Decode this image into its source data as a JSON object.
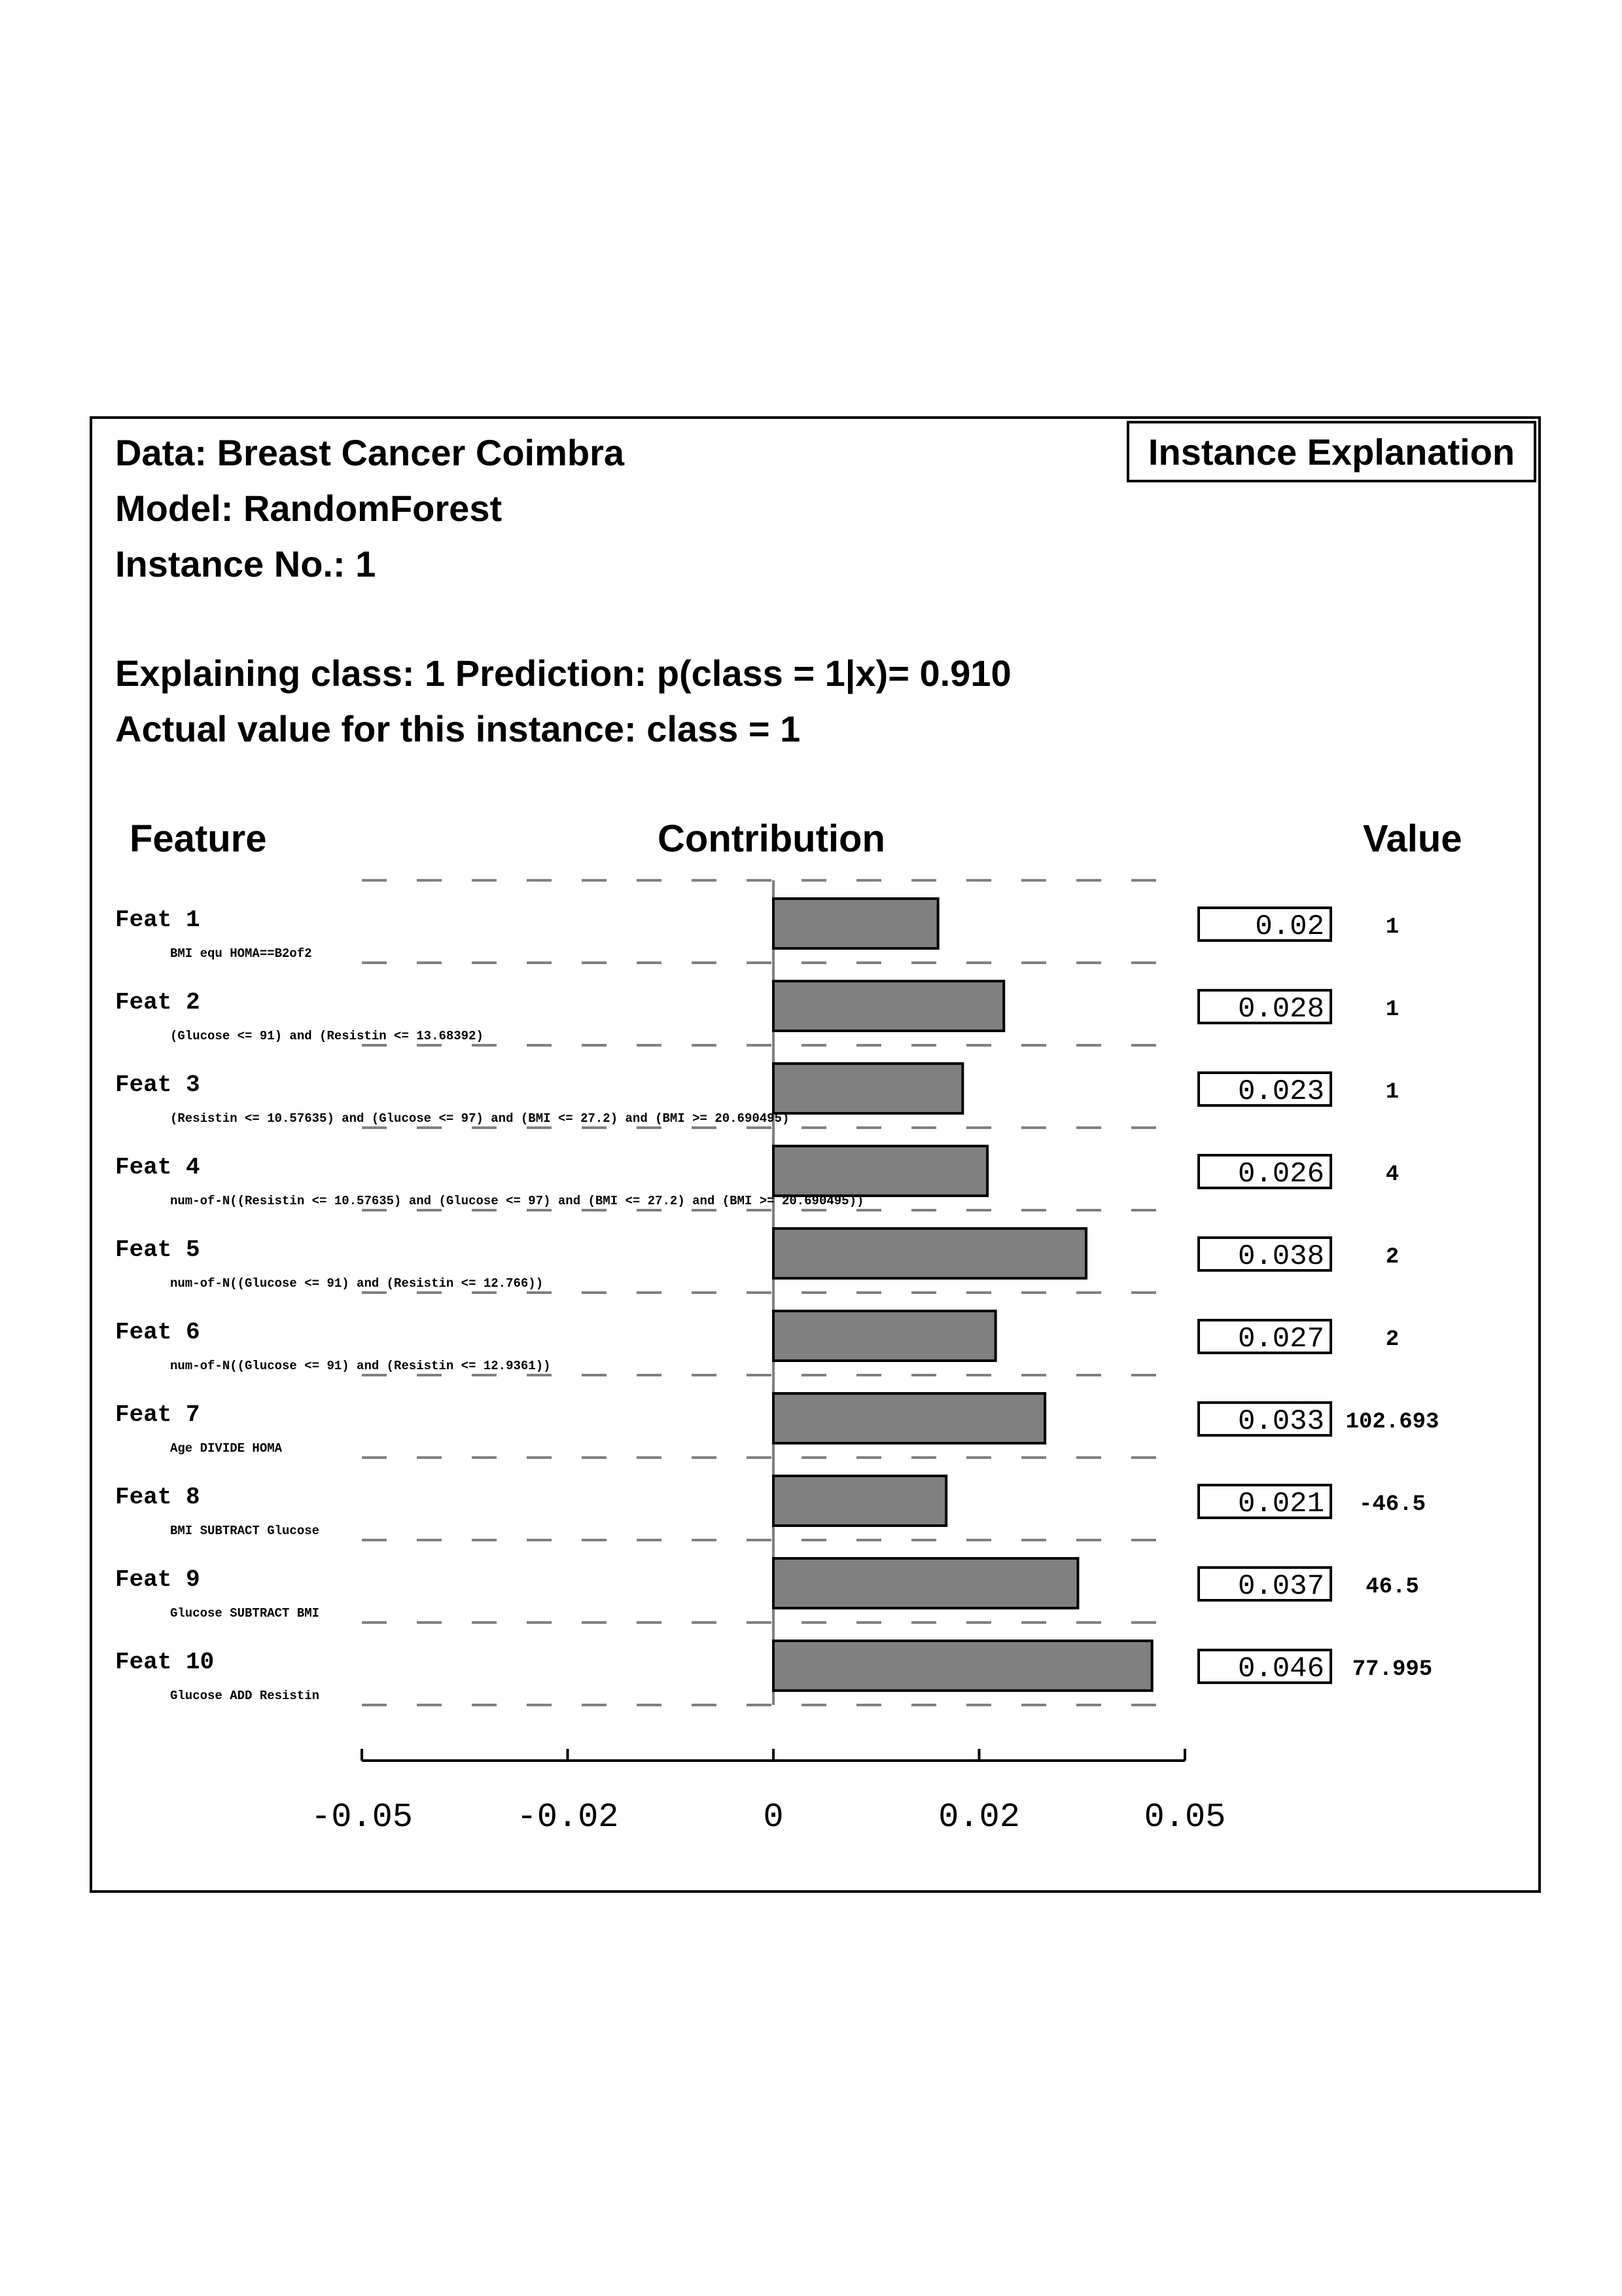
{
  "header": {
    "data_line": "Data: Breast Cancer Coimbra",
    "model_line": "Model: RandomForest",
    "instance_line": "Instance No.: 1",
    "explaining_line": "Explaining class: 1 Prediction: p(class = 1|x)= 0.910",
    "actual_line": "Actual value for this instance: class = 1",
    "badge": "Instance Explanation"
  },
  "columns": {
    "feature": "Feature",
    "contribution": "Contribution",
    "value": "Value"
  },
  "colors": {
    "bar_fill": "#808080",
    "bar_stroke": "#000000",
    "grid_dash": "#808080",
    "axis": "#000000"
  },
  "chart_data": {
    "type": "bar",
    "orientation": "horizontal",
    "xlim": [
      -0.05,
      0.05
    ],
    "x_ticks": [
      -0.05,
      -0.025,
      0,
      0.025,
      0.05
    ],
    "x_tick_labels": [
      "-0.05",
      "-0.02",
      "0",
      "0.02",
      "0.05"
    ],
    "grid": "dashed horizontal separators",
    "features": [
      {
        "name": "Feat 1",
        "desc": "BMI equ HOMA==B2of2",
        "contribution": 0.02,
        "contribution_label": "0.02",
        "value": "1"
      },
      {
        "name": "Feat 2",
        "desc": "(Glucose <= 91) and (Resistin <= 13.68392)",
        "contribution": 0.028,
        "contribution_label": "0.028",
        "value": "1"
      },
      {
        "name": "Feat 3",
        "desc": "(Resistin <= 10.57635) and (Glucose <= 97) and (BMI <= 27.2) and (BMI >= 20.690495)",
        "contribution": 0.023,
        "contribution_label": "0.023",
        "value": "1"
      },
      {
        "name": "Feat 4",
        "desc": "num-of-N((Resistin <= 10.57635) and (Glucose <= 97) and (BMI <= 27.2) and (BMI >= 20.690495))",
        "contribution": 0.026,
        "contribution_label": "0.026",
        "value": "4"
      },
      {
        "name": "Feat 5",
        "desc": "num-of-N((Glucose <= 91) and (Resistin <= 12.766))",
        "contribution": 0.038,
        "contribution_label": "0.038",
        "value": "2"
      },
      {
        "name": "Feat 6",
        "desc": "num-of-N((Glucose <= 91) and (Resistin <= 12.9361))",
        "contribution": 0.027,
        "contribution_label": "0.027",
        "value": "2"
      },
      {
        "name": "Feat 7",
        "desc": "Age DIVIDE HOMA",
        "contribution": 0.033,
        "contribution_label": "0.033",
        "value": "102.693"
      },
      {
        "name": "Feat 8",
        "desc": "BMI SUBTRACT Glucose",
        "contribution": 0.021,
        "contribution_label": "0.021",
        "value": "-46.5"
      },
      {
        "name": "Feat 9",
        "desc": "Glucose SUBTRACT BMI",
        "contribution": 0.037,
        "contribution_label": "0.037",
        "value": "46.5"
      },
      {
        "name": "Feat 10",
        "desc": "Glucose ADD Resistin",
        "contribution": 0.046,
        "contribution_label": "0.046",
        "value": "77.995"
      }
    ]
  }
}
